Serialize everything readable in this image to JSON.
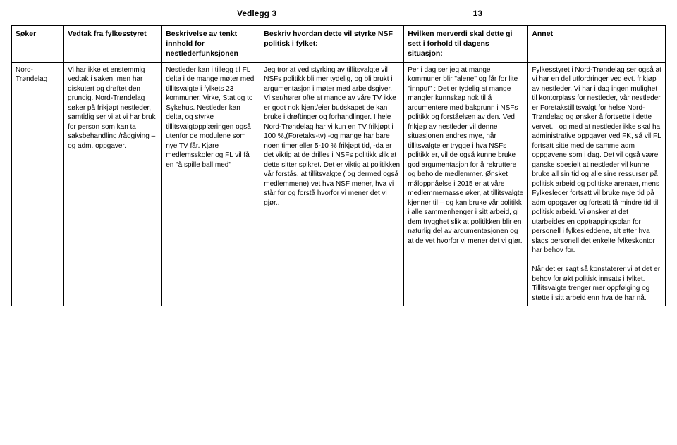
{
  "header": {
    "title": "Vedlegg 3",
    "page_number": "13"
  },
  "table": {
    "columns": [
      "Søker",
      "Vedtak fra fylkesstyret",
      "Beskrivelse av tenkt innhold for nestlederfunksjonen",
      "Beskriv hvordan dette vil styrke NSF politisk i fylket:",
      "Hvilken merverdi skal dette gi sett i forhold til dagens situasjon:",
      "Annet"
    ],
    "row": {
      "soker": "Nord-Trøndelag",
      "vedtak": "Vi har ikke et enstemmig vedtak i saken, men har diskutert og drøftet den grundig. Nord-Trøndelag søker på frikjøpt nestleder, samtidig ser vi at vi har bruk for person som kan ta saksbehandling /rådgiving – og adm. oppgaver.",
      "beskrivelse": "Nestleder kan i tillegg til FL delta i de mange møter med tillitsvalgte i fylkets 23 kommuner, Virke, Stat og to Sykehus. Nestleder kan delta, og styrke tillitsvalgtopplæringen også utenfor de modulene som nye TV får. Kjøre medlemsskoler og FL vil få en \"å spille ball med\"",
      "styrke": "Jeg tror at ved styrking av tillitsvalgte vil NSFs politikk bli mer tydelig, og bli brukt i argumentasjon i møter med arbeidsgiver. Vi ser/hører ofte at mange av våre TV ikke er godt nok kjent/eier budskapet de kan bruke i drøftinger og forhandlinger. I hele Nord-Trøndelag har vi kun en TV frikjøpt i 100 %,(Foretaks-tv) -og mange har bare noen timer eller 5-10 % frikjøpt tid, -da er det viktig at de drilles i NSFs politikk slik at dette sitter spikret. Det er viktig at politikken vår forstås, at tillitsvalgte ( og dermed også medlemmene) vet hva NSF mener, hva vi står for og forstå hvorfor vi mener det vi gjør..",
      "merverdi": "Per i dag ser jeg at mange kommuner blir \"alene\" og får for lite \"innput\" : Det er tydelig at mange mangler kunnskap nok til å argumentere med bakgrunn i NSFs politikk og forståelsen av den. Ved frikjøp av nestleder vil denne situasjonen endres mye, når tillitsvalgte er trygge i hva NSFs politikk er, vil de også kunne bruke god argumentasjon for å rekruttere og beholde medlemmer. Ønsket måloppnåelse i 2015 er at våre medlemmemasse øker, at tillitsvalgte kjenner til – og kan bruke vår politikk i alle sammenhenger i sitt arbeid, gi dem trygghet slik at politikken blir en naturlig del av argumentasjonen og at de vet hvorfor vi mener det vi gjør.",
      "annet": "Fylkesstyret i Nord-Trøndelag ser også at vi har en del utfordringer ved evt. frikjøp av nestleder. Vi har i dag ingen mulighet til kontorplass for nestleder, vår nestleder er Foretakstillitsvalgt for helse Nord-Trøndelag og ønsker å fortsette i dette vervet. I og med at nestleder ikke skal ha administrative oppgaver ved FK, så vil FL fortsatt sitte med de samme adm oppgavene som i dag. Det vil også være ganske spesielt at nestleder vil kunne bruke all sin tid og alle sine ressurser på politisk arbeid og politiske arenaer, mens Fylkesleder fortsatt vil bruke mye tid på adm oppgaver og fortsatt få mindre tid til politisk arbeid. Vi ønsker at det utarbeides en opptrappingsplan for personell i fylkesleddene, alt etter hva slags personell det enkelte fylkeskontor har behov for.\n\nNår det er sagt så konstaterer vi at det er behov for økt politisk innsats i fylket. Tillitsvalgte trenger mer oppfølging og støtte i sitt arbeid enn hva de har nå."
    }
  }
}
